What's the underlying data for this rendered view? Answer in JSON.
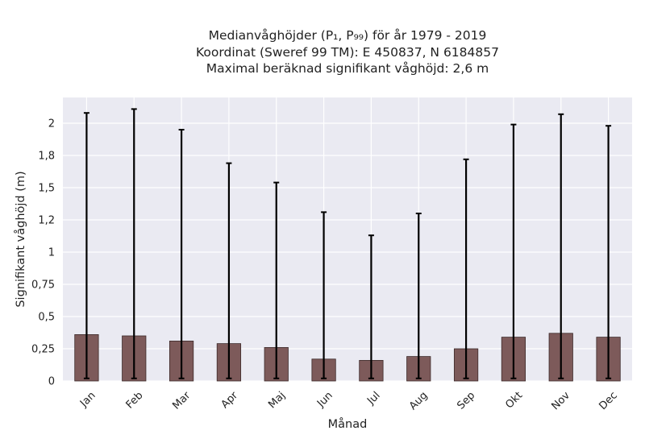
{
  "title": {
    "line1": "Medianvåghöjder (P₁, P₉₉) för år 1979 - 2019",
    "line2": "Koordinat (Sweref 99 TM): E 450837, N 6184857",
    "line3": "Maximal beräknad signifikant våghöjd: 2,6 m"
  },
  "colors": {
    "background": "#eaeaf2",
    "grid": "#ffffff",
    "bar_fill": "#7d5a5a",
    "bar_edge": "#3c2a2a",
    "error_bar": "#000000"
  },
  "chart_data": {
    "type": "bar",
    "xlabel": "Månad",
    "ylabel": "Signifikant våghöjd (m)",
    "categories": [
      "Jan",
      "Feb",
      "Mar",
      "Apr",
      "Maj",
      "Jun",
      "Jul",
      "Aug",
      "Sep",
      "Okt",
      "Nov",
      "Dec"
    ],
    "series": [
      {
        "values": [
          0.36,
          0.35,
          0.31,
          0.29,
          0.26,
          0.17,
          0.16,
          0.19,
          0.25,
          0.34,
          0.37,
          0.34
        ],
        "p1": [
          0.02,
          0.02,
          0.02,
          0.02,
          0.02,
          0.02,
          0.02,
          0.02,
          0.02,
          0.02,
          0.02,
          0.02
        ],
        "p99": [
          2.08,
          2.11,
          1.95,
          1.69,
          1.54,
          1.31,
          1.13,
          1.3,
          1.72,
          1.99,
          2.07,
          1.98
        ]
      }
    ],
    "yticks": [
      0,
      0.25,
      0.5,
      0.75,
      1,
      1.25,
      1.5,
      1.75,
      2
    ],
    "ytick_labels": [
      "0",
      "0,25",
      "0,5",
      "0,75",
      "1",
      "1,2",
      "1,5",
      "1,8",
      "2"
    ],
    "ylim": [
      0,
      2.2
    ],
    "grid": true
  }
}
